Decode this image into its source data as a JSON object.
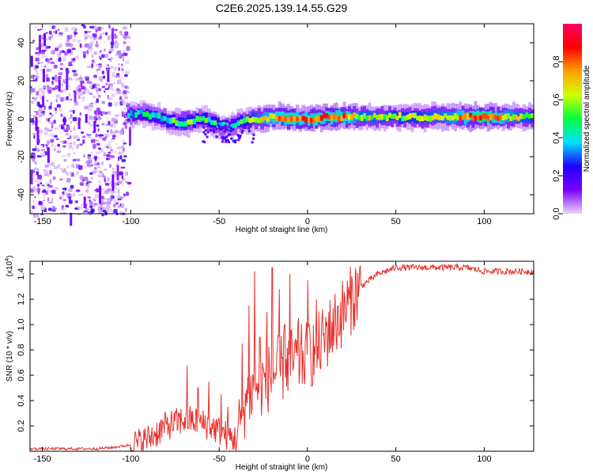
{
  "figure_title": "C2E6.2025.139.14.55.G29",
  "chart_data": [
    {
      "type": "heatmap",
      "xlabel": "Height of straight line (km)",
      "ylabel": "Frequency (Hz)",
      "xlim": [
        -157,
        128
      ],
      "ylim": [
        -50,
        50
      ],
      "xticks": [
        -150,
        -100,
        -50,
        0,
        50,
        100
      ],
      "yticks": [
        -40,
        -20,
        0,
        20,
        40
      ],
      "colorbar": {
        "label": "Normalized spectral amplitude",
        "range": [
          0,
          1
        ],
        "ticks": [
          0.0,
          0.2,
          0.4,
          0.6,
          0.8
        ],
        "tick_labels": [
          "0.0",
          "0.2",
          "0.4",
          "0.6",
          "0.8"
        ],
        "colormap": [
          "#e8d8f8",
          "#7b00ff",
          "#1f00ff",
          "#00e0ff",
          "#00ff40",
          "#d0ff00",
          "#ffa000",
          "#ff0000",
          "#ff0060"
        ]
      },
      "ridge": {
        "x": [
          -102,
          -95,
          -90,
          -85,
          -80,
          -75,
          -70,
          -65,
          -60,
          -55,
          -50,
          -45,
          -40,
          -35,
          -30,
          -25,
          -20,
          -15,
          -10,
          -5,
          0,
          10,
          20,
          30,
          40,
          50,
          60,
          70,
          80,
          90,
          100,
          110,
          120,
          128
        ],
        "freq": [
          2,
          3,
          2,
          1,
          -1,
          -2,
          -2,
          -1,
          0,
          -2,
          -4,
          -4,
          -2,
          -1,
          0,
          0,
          1,
          1,
          0,
          0,
          0,
          1,
          1,
          1,
          1,
          1,
          1,
          1,
          1,
          1,
          1,
          1,
          1,
          1
        ],
        "amplitude": [
          0.35,
          0.4,
          0.45,
          0.4,
          0.45,
          0.5,
          0.55,
          0.5,
          0.45,
          0.5,
          0.45,
          0.4,
          0.45,
          0.5,
          0.6,
          0.7,
          0.75,
          0.8,
          0.85,
          0.75,
          0.8,
          0.85,
          0.8,
          0.6,
          0.6,
          0.55,
          0.55,
          0.6,
          0.65,
          0.8,
          0.9,
          0.7,
          0.6,
          0.55
        ]
      },
      "noise_region_x": [
        -157,
        -100
      ]
    },
    {
      "type": "line",
      "xlabel": "Height of straight line (km)",
      "ylabel": "SNR (10 * v/v)",
      "y_multiplier": "(x10",
      "y_exponent": "4",
      "y_multiplier_close": ")",
      "xlim": [
        -157,
        128
      ],
      "ylim": [
        0,
        1.5
      ],
      "xticks": [
        -150,
        -100,
        -50,
        0,
        50,
        100
      ],
      "yticks": [
        0.2,
        0.4,
        0.6,
        0.8,
        1.0,
        1.2,
        1.4
      ],
      "series": [
        {
          "color": "#e8322f",
          "x": [
            -157,
            -140,
            -120,
            -110,
            -100,
            -95,
            -90,
            -85,
            -80,
            -75,
            -70,
            -65,
            -60,
            -55,
            -50,
            -45,
            -42,
            -40,
            -37,
            -35,
            -32,
            -30,
            -25,
            -20,
            -15,
            -10,
            -5,
            0,
            5,
            10,
            15,
            20,
            25,
            30,
            40,
            50,
            60,
            70,
            80,
            90,
            100,
            110,
            120,
            128
          ],
          "y": [
            0.02,
            0.02,
            0.02,
            0.03,
            0.05,
            0.07,
            0.1,
            0.15,
            0.2,
            0.22,
            0.25,
            0.24,
            0.22,
            0.2,
            0.16,
            0.12,
            0.1,
            0.1,
            0.3,
            0.4,
            0.45,
            0.5,
            0.55,
            0.6,
            0.65,
            0.7,
            0.72,
            0.75,
            0.8,
            0.9,
            1.0,
            1.1,
            1.2,
            1.3,
            1.4,
            1.45,
            1.45,
            1.45,
            1.45,
            1.45,
            1.42,
            1.42,
            1.42,
            1.42
          ],
          "spike_x": [
            -68,
            -62,
            -56,
            -49,
            -45,
            -37,
            -33,
            -30,
            -27,
            -23,
            -20,
            -16,
            -13,
            -10,
            -5,
            0,
            5,
            12,
            20
          ],
          "spike_y": [
            0.68,
            0.5,
            0.55,
            0.45,
            0.35,
            0.85,
            1.15,
            1.42,
            0.9,
            1.1,
            1.45,
            1.28,
            1.0,
            1.4,
            1.05,
            1.35,
            1.2,
            1.1,
            1.2
          ]
        }
      ]
    }
  ]
}
